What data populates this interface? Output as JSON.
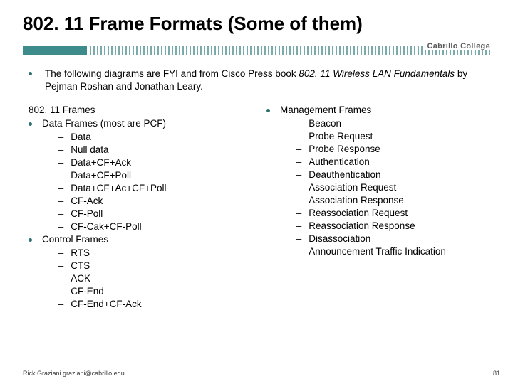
{
  "title": "802. 11 Frame Formats (Some of them)",
  "logo": "Cabrillo College",
  "intro_prefix": "The following diagrams are FYI and from Cisco Press book ",
  "intro_italic": "802. 11 Wireless LAN Fundamentals",
  "intro_suffix": " by Pejman Roshan and Jonathan Leary.",
  "left": {
    "heading": "802. 11 Frames",
    "groups": [
      {
        "label": "Data Frames (most are PCF)",
        "items": [
          "Data",
          "Null data",
          "Data+CF+Ack",
          "Data+CF+Poll",
          "Data+CF+Ac+CF+Poll",
          "CF-Ack",
          "CF-Poll",
          "CF-Cak+CF-Poll"
        ]
      },
      {
        "label": "Control Frames",
        "items": [
          "RTS",
          "CTS",
          "ACK",
          "CF-End",
          "CF-End+CF-Ack"
        ]
      }
    ]
  },
  "right": {
    "groups": [
      {
        "label": "Management Frames",
        "items": [
          "Beacon",
          "Probe Request",
          "Probe Response",
          "Authentication",
          "Deauthentication",
          "Association Request",
          "Association Response",
          "Reassociation Request",
          "Reassociation Response",
          "Disassociation",
          "Announcement Traffic Indication"
        ]
      }
    ]
  },
  "footer": "Rick Graziani  graziani@cabrillo.edu",
  "page": "81",
  "colors": {
    "accent": "#3d8b8b",
    "text": "#000000"
  }
}
